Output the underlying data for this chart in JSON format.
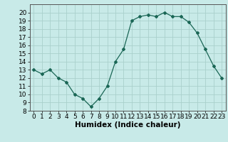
{
  "x": [
    0,
    1,
    2,
    3,
    4,
    5,
    6,
    7,
    8,
    9,
    10,
    11,
    12,
    13,
    14,
    15,
    16,
    17,
    18,
    19,
    20,
    21,
    22,
    23
  ],
  "y": [
    13.0,
    12.5,
    13.0,
    12.0,
    11.5,
    10.0,
    9.5,
    8.5,
    9.5,
    11.0,
    14.0,
    15.5,
    19.0,
    19.5,
    19.7,
    19.5,
    20.0,
    19.5,
    19.5,
    18.8,
    17.5,
    15.5,
    13.5,
    12.0
  ],
  "line_color": "#1a6655",
  "marker": "D",
  "marker_size": 2.0,
  "bg_color": "#c8eae8",
  "grid_color": "#aad0cc",
  "xlabel": "Humidex (Indice chaleur)",
  "ylim": [
    8,
    21
  ],
  "xlim": [
    -0.5,
    23.5
  ],
  "yticks": [
    8,
    9,
    10,
    11,
    12,
    13,
    14,
    15,
    16,
    17,
    18,
    19,
    20
  ],
  "xticks": [
    0,
    1,
    2,
    3,
    4,
    5,
    6,
    7,
    8,
    9,
    10,
    11,
    12,
    13,
    14,
    15,
    16,
    17,
    18,
    19,
    20,
    21,
    22,
    23
  ],
  "xlabel_fontsize": 7.5,
  "tick_fontsize": 6.5,
  "linewidth": 0.9
}
